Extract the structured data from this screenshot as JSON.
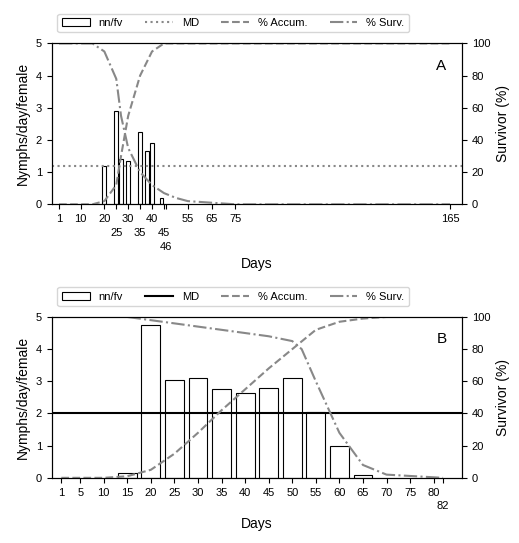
{
  "chart_data": [
    {
      "type": "bar",
      "annotations": [
        "A"
      ],
      "xlabel": "Days",
      "ylabel": "Nymphs/day/female",
      "y2label": "Survivor (%)",
      "xlim": [
        -2,
        170
      ],
      "xticks": [
        1,
        10,
        20,
        25,
        30,
        35,
        40,
        45,
        46,
        55,
        65,
        75,
        165
      ],
      "ylim": [
        0,
        5
      ],
      "yticks": [
        0,
        1,
        2,
        3,
        4,
        5
      ],
      "y2lim": [
        0,
        100
      ],
      "y2ticks": [
        0,
        20,
        40,
        60,
        80,
        100
      ],
      "legend": "upper left",
      "series": [
        {
          "name": "nn/fv",
          "type": "bar",
          "x": [
            20,
            25,
            27,
            30,
            35,
            38,
            40,
            44
          ],
          "values": [
            1.2,
            2.9,
            1.4,
            1.35,
            2.25,
            1.65,
            1.9,
            0.2
          ],
          "color": "white"
        },
        {
          "name": "MD",
          "type": "hline",
          "values": [
            1.2
          ],
          "color": "#888888",
          "line_style": "dotted"
        },
        {
          "name": "% Accum.",
          "type": "line",
          "axis": "y2",
          "x": [
            1,
            15,
            20,
            25,
            27,
            30,
            35,
            40,
            45,
            55,
            75,
            165
          ],
          "values": [
            0,
            0,
            2,
            12,
            30,
            55,
            80,
            95,
            100,
            100,
            100,
            100
          ],
          "color": "#888888",
          "line_style": "dashed"
        },
        {
          "name": "% Surv.",
          "type": "line",
          "axis": "y2",
          "x": [
            1,
            15,
            20,
            25,
            27,
            30,
            35,
            40,
            45,
            50,
            55,
            65,
            75,
            100,
            165
          ],
          "values": [
            100,
            100,
            95,
            78,
            55,
            35,
            20,
            12,
            7,
            4,
            2,
            1,
            0,
            0,
            0
          ],
          "color": "#888888",
          "line_style": "dashdot"
        }
      ]
    },
    {
      "type": "bar",
      "annotations": [
        "B"
      ],
      "xlabel": "Days",
      "ylabel": "Nymphs/day/female",
      "y2label": "Survivor (%)",
      "xlim": [
        -1,
        86
      ],
      "xticks": [
        1,
        5,
        10,
        15,
        20,
        25,
        30,
        35,
        40,
        45,
        50,
        55,
        60,
        65,
        70,
        75,
        80,
        82
      ],
      "ylim": [
        0,
        5
      ],
      "yticks": [
        0,
        1,
        2,
        3,
        4,
        5
      ],
      "y2lim": [
        0,
        100
      ],
      "y2ticks": [
        0,
        20,
        40,
        60,
        80,
        100
      ],
      "legend": "upper left",
      "series": [
        {
          "name": "nn/fv",
          "type": "bar",
          "x": [
            15,
            20,
            25,
            30,
            35,
            40,
            45,
            50,
            55,
            60,
            65
          ],
          "values": [
            0.15,
            4.75,
            3.05,
            3.1,
            2.75,
            2.65,
            2.8,
            3.1,
            2.05,
            1.0,
            0.1
          ],
          "color": "white"
        },
        {
          "name": "MD",
          "type": "hline",
          "values": [
            2.0
          ],
          "color": "#000000",
          "line_style": "solid"
        },
        {
          "name": "% Accum.",
          "type": "line",
          "axis": "y2",
          "x": [
            1,
            10,
            15,
            20,
            25,
            30,
            35,
            40,
            45,
            50,
            55,
            60,
            65,
            70,
            82
          ],
          "values": [
            0,
            0,
            1,
            5,
            15,
            28,
            42,
            55,
            68,
            80,
            92,
            97,
            99,
            100,
            100
          ],
          "color": "#888888",
          "line_style": "dashed"
        },
        {
          "name": "% Surv.",
          "type": "line",
          "axis": "y2",
          "x": [
            1,
            10,
            15,
            20,
            25,
            30,
            35,
            40,
            45,
            50,
            52,
            55,
            60,
            65,
            70,
            82
          ],
          "values": [
            100,
            100,
            100,
            98,
            96,
            94,
            92,
            90,
            88,
            85,
            80,
            60,
            28,
            8,
            2,
            0
          ],
          "color": "#888888",
          "line_style": "dashdot"
        }
      ]
    }
  ]
}
